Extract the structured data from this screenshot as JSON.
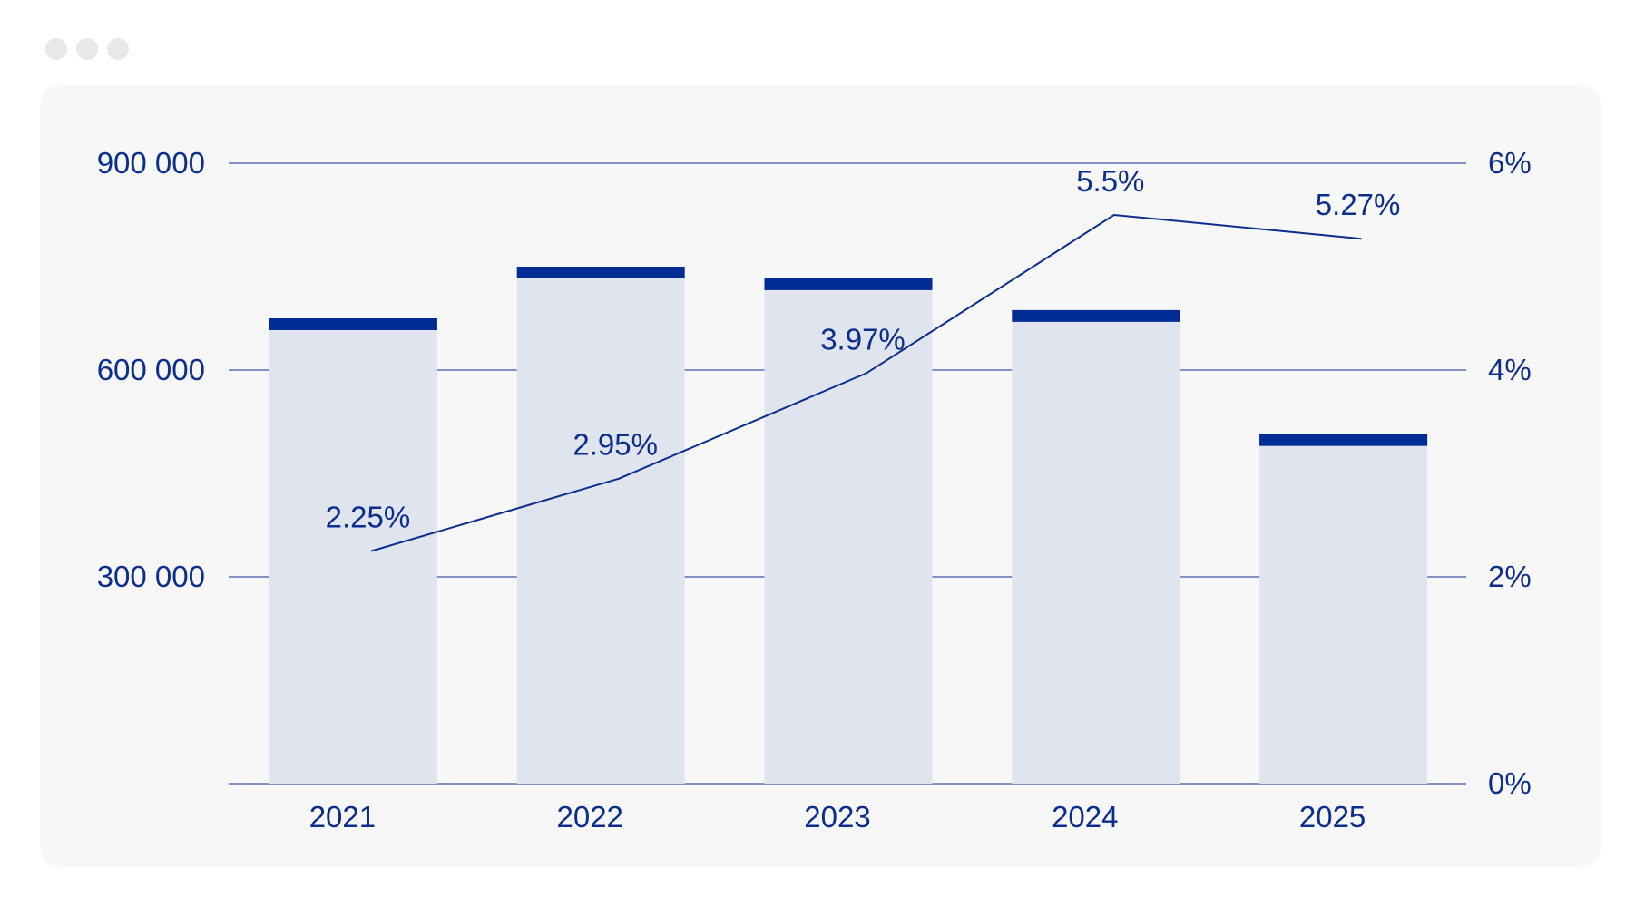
{
  "window": {
    "dots": [
      "dot-1",
      "dot-2",
      "dot-3"
    ]
  },
  "colors": {
    "accent": "#002d95",
    "bar_fill": "#dfe4ef",
    "line": "#0b2d8c",
    "card": "#f7f7f8",
    "grid": "#3d54a8"
  },
  "chart_data": {
    "type": "bar",
    "categories": [
      "2021",
      "2022",
      "2023",
      "2024",
      "2025"
    ],
    "series": [
      {
        "type": "bar",
        "axis": "left",
        "values": [
          675000,
          750000,
          733000,
          687000,
          507000
        ]
      },
      {
        "type": "line",
        "axis": "right",
        "values": [
          2.25,
          2.95,
          3.97,
          5.5,
          5.27
        ],
        "labels": [
          "2.25%",
          "2.95%",
          "3.97%",
          "5.5%",
          "5.27%"
        ]
      }
    ],
    "y_left": {
      "ylim": [
        0,
        900000
      ],
      "ticks": [
        300000,
        600000,
        900000
      ],
      "tick_labels": [
        "300 000",
        "600 000",
        "900 000"
      ]
    },
    "y_right": {
      "ylim": [
        0,
        6
      ],
      "ticks": [
        0,
        2,
        4,
        6
      ],
      "tick_labels": [
        "0%",
        "2%",
        "4%",
        "6%"
      ]
    },
    "grid": true
  }
}
